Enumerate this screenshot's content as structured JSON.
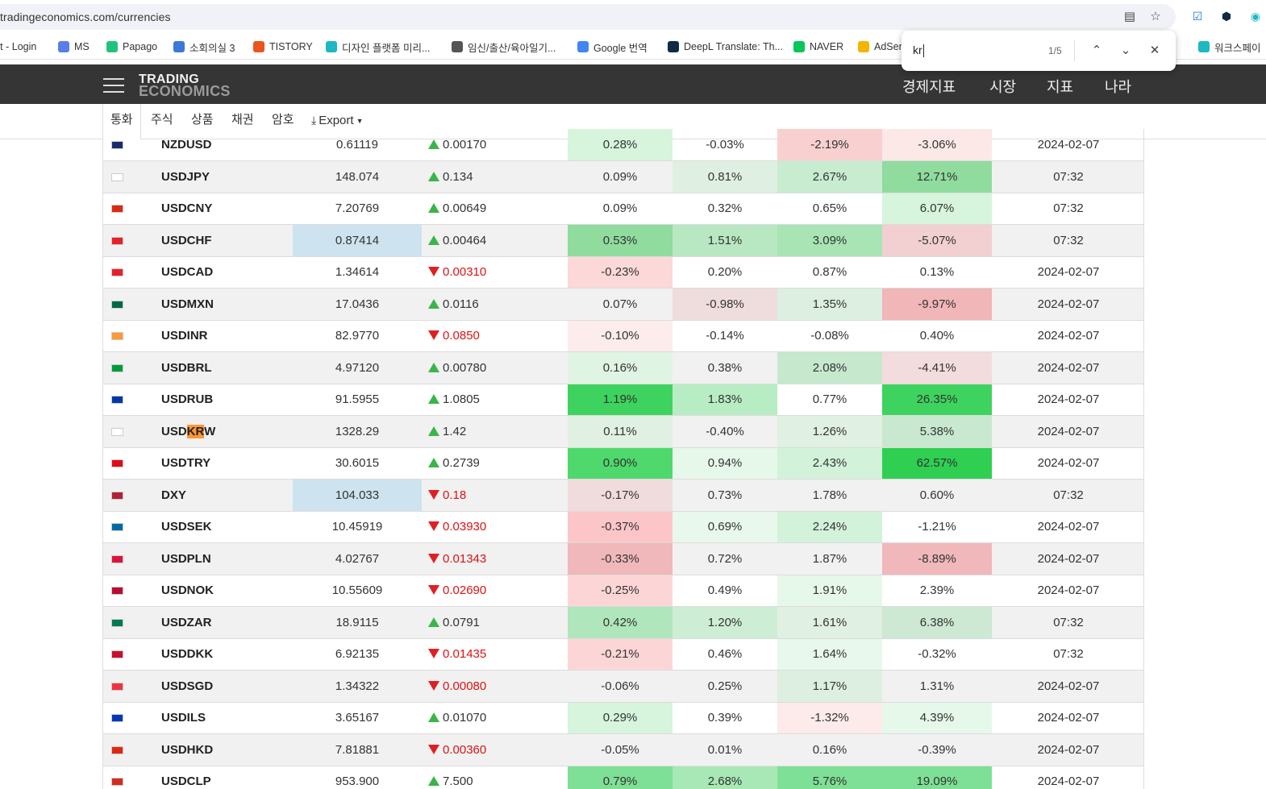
{
  "browser": {
    "url": "tradingeconomics.com/currencies",
    "bookmarks": [
      {
        "label": "rt - Login",
        "color": "#888888"
      },
      {
        "label": "MS",
        "color": "#5b7de8"
      },
      {
        "label": "Papago",
        "color": "#1fc47a"
      },
      {
        "label": "소회의실 3",
        "color": "#3c78d8"
      },
      {
        "label": "TISTORY",
        "color": "#eb531f"
      },
      {
        "label": "디자인 플랫폼 미리...",
        "color": "#1cb8c4"
      },
      {
        "label": "임신/출산/육아일기...",
        "color": "#555555"
      },
      {
        "label": "Google 번역",
        "color": "#4285f4"
      },
      {
        "label": "DeepL Translate: Th...",
        "color": "#0f2b46"
      },
      {
        "label": "NAVER",
        "color": "#03c75a"
      },
      {
        "label": "AdSen",
        "color": "#f4b400"
      },
      {
        "label": "워크스페이",
        "color": "#1cb8c4"
      }
    ],
    "find": {
      "query": "kr",
      "count": "1/5"
    }
  },
  "header": {
    "logo_line1": "TRADING",
    "logo_line2": "ECONOMICS",
    "nav": [
      "경제지표",
      "시장",
      "지표",
      "나라"
    ]
  },
  "subnav": {
    "tabs": [
      "통화",
      "주식",
      "상품",
      "채권",
      "암호"
    ],
    "export": "Export"
  },
  "table": {
    "rows": [
      {
        "symbol": "NZDUSD",
        "price": "0.61119",
        "dir": "up",
        "change": "0.00170",
        "d": "0.28%",
        "w": "-0.03%",
        "m": "-2.19%",
        "y": "-3.06%",
        "date": "2024-02-07",
        "flag_color": "#1a2b6d",
        "price_hl": false,
        "bg": [
          "#d6f5dc",
          "",
          "#f8d0d0",
          "#fde8e8"
        ]
      },
      {
        "symbol": "USDJPY",
        "price": "148.074",
        "dir": "up",
        "change": "0.134",
        "d": "0.09%",
        "w": "0.81%",
        "m": "2.67%",
        "y": "12.71%",
        "date": "07:32",
        "flag_color": "#ffffff",
        "price_hl": false,
        "bg": [
          "",
          "#dff0e2",
          "#c8ecd0",
          "#8fdc9e"
        ]
      },
      {
        "symbol": "USDCNY",
        "price": "7.20769",
        "dir": "up",
        "change": "0.00649",
        "d": "0.09%",
        "w": "0.32%",
        "m": "0.65%",
        "y": "6.07%",
        "date": "07:32",
        "flag_color": "#de2910",
        "price_hl": false,
        "bg": [
          "",
          "",
          "",
          "#d6f5dc"
        ]
      },
      {
        "symbol": "USDCHF",
        "price": "0.87414",
        "dir": "up",
        "change": "0.00464",
        "d": "0.53%",
        "w": "1.51%",
        "m": "3.09%",
        "y": "-5.07%",
        "date": "07:32",
        "flag_color": "#e8202a",
        "price_hl": true,
        "bg": [
          "#8fdc9e",
          "#b8e8c2",
          "#a8e4b4",
          "#f2cfd0"
        ]
      },
      {
        "symbol": "USDCAD",
        "price": "1.34614",
        "dir": "down",
        "change": "0.00310",
        "d": "-0.23%",
        "w": "0.20%",
        "m": "0.87%",
        "y": "0.13%",
        "date": "2024-02-07",
        "flag_color": "#e8202a",
        "price_hl": false,
        "bg": [
          "#fcd8d8",
          "",
          "",
          ""
        ]
      },
      {
        "symbol": "USDMXN",
        "price": "17.0436",
        "dir": "up",
        "change": "0.0116",
        "d": "0.07%",
        "w": "-0.98%",
        "m": "1.35%",
        "y": "-9.97%",
        "date": "2024-02-07",
        "flag_color": "#006847",
        "price_hl": false,
        "bg": [
          "",
          "#efdcdd",
          "#dcefe0",
          "#f0b6b8"
        ]
      },
      {
        "symbol": "USDINR",
        "price": "82.9770",
        "dir": "down",
        "change": "0.0850",
        "d": "-0.10%",
        "w": "-0.14%",
        "m": "-0.08%",
        "y": "0.40%",
        "date": "2024-02-07",
        "flag_color": "#ff9933",
        "price_hl": false,
        "bg": [
          "#fdecec",
          "",
          "",
          ""
        ]
      },
      {
        "symbol": "USDBRL",
        "price": "4.97120",
        "dir": "up",
        "change": "0.00780",
        "d": "0.16%",
        "w": "0.38%",
        "m": "2.08%",
        "y": "-4.41%",
        "date": "2024-02-07",
        "flag_color": "#009c3b",
        "price_hl": false,
        "bg": [
          "#e0f4e4",
          "",
          "#c6e8cd",
          "#f3dcdd"
        ]
      },
      {
        "symbol": "USDRUB",
        "price": "91.5955",
        "dir": "up",
        "change": "1.0805",
        "d": "1.19%",
        "w": "1.83%",
        "m": "0.77%",
        "y": "26.35%",
        "date": "2024-02-07",
        "flag_color": "#0039a6",
        "price_hl": false,
        "bg": [
          "#3ed35e",
          "#b8edc4",
          "",
          "#3ed35e"
        ]
      },
      {
        "symbol": "USDKRW",
        "price": "1328.29",
        "dir": "up",
        "change": "1.42",
        "d": "0.11%",
        "w": "-0.40%",
        "m": "1.26%",
        "y": "5.38%",
        "date": "2024-02-07",
        "flag_color": "#ffffff",
        "price_hl": false,
        "bg": [
          "#e0f0e3",
          "",
          "#e0f0e3",
          "#c8e8cf"
        ]
      },
      {
        "symbol": "USDTRY",
        "price": "30.6015",
        "dir": "up",
        "change": "0.2739",
        "d": "0.90%",
        "w": "0.94%",
        "m": "2.43%",
        "y": "62.57%",
        "date": "2024-02-07",
        "flag_color": "#e30a17",
        "price_hl": false,
        "bg": [
          "#4fd86c",
          "#e6f8ea",
          "#d2f2d9",
          "#2fcf52"
        ]
      },
      {
        "symbol": "DXY",
        "price": "104.033",
        "dir": "down",
        "change": "0.18",
        "d": "-0.17%",
        "w": "0.73%",
        "m": "1.78%",
        "y": "0.60%",
        "date": "07:32",
        "flag_color": "#b22234",
        "price_hl": true,
        "bg": [
          "#f1dcdd",
          "",
          "",
          ""
        ]
      },
      {
        "symbol": "USDSEK",
        "price": "10.45919",
        "dir": "down",
        "change": "0.03930",
        "d": "-0.37%",
        "w": "0.69%",
        "m": "2.24%",
        "y": "-1.21%",
        "date": "2024-02-07",
        "flag_color": "#006aa7",
        "price_hl": false,
        "bg": [
          "#fcc6c8",
          "#e8f8ec",
          "#d2f2d9",
          ""
        ]
      },
      {
        "symbol": "USDPLN",
        "price": "4.02767",
        "dir": "down",
        "change": "0.01343",
        "d": "-0.33%",
        "w": "0.72%",
        "m": "1.87%",
        "y": "-8.89%",
        "date": "2024-02-07",
        "flag_color": "#dc143c",
        "price_hl": false,
        "bg": [
          "#f0b8ba",
          "",
          "",
          "#f0b8ba"
        ]
      },
      {
        "symbol": "USDNOK",
        "price": "10.55609",
        "dir": "down",
        "change": "0.02690",
        "d": "-0.25%",
        "w": "0.49%",
        "m": "1.91%",
        "y": "2.39%",
        "date": "2024-02-07",
        "flag_color": "#ba0c2f",
        "price_hl": false,
        "bg": [
          "#fcd6d6",
          "",
          "#e6f8ea",
          ""
        ]
      },
      {
        "symbol": "USDZAR",
        "price": "18.9115",
        "dir": "up",
        "change": "0.0791",
        "d": "0.42%",
        "w": "1.20%",
        "m": "1.61%",
        "y": "6.38%",
        "date": "07:32",
        "flag_color": "#007a4d",
        "price_hl": false,
        "bg": [
          "#b0e6bc",
          "#cdeed4",
          "#e0f0e3",
          "#cde8d3"
        ]
      },
      {
        "symbol": "USDDKK",
        "price": "6.92135",
        "dir": "down",
        "change": "0.01435",
        "d": "-0.21%",
        "w": "0.46%",
        "m": "1.64%",
        "y": "-0.32%",
        "date": "07:32",
        "flag_color": "#c8102e",
        "price_hl": false,
        "bg": [
          "#fcd6d6",
          "",
          "#e8f8ec",
          ""
        ]
      },
      {
        "symbol": "USDSGD",
        "price": "1.34322",
        "dir": "down",
        "change": "0.00080",
        "d": "-0.06%",
        "w": "0.25%",
        "m": "1.17%",
        "y": "1.31%",
        "date": "2024-02-07",
        "flag_color": "#ef3340",
        "price_hl": false,
        "bg": [
          "",
          "",
          "#dcefe0",
          ""
        ]
      },
      {
        "symbol": "USDILS",
        "price": "3.65167",
        "dir": "up",
        "change": "0.01070",
        "d": "0.29%",
        "w": "0.39%",
        "m": "-1.32%",
        "y": "4.39%",
        "date": "2024-02-07",
        "flag_color": "#0038b8",
        "price_hl": false,
        "bg": [
          "#d6f5dc",
          "",
          "#fdeaea",
          "#e6f8ea"
        ]
      },
      {
        "symbol": "USDHKD",
        "price": "7.81881",
        "dir": "down",
        "change": "0.00360",
        "d": "-0.05%",
        "w": "0.01%",
        "m": "0.16%",
        "y": "-0.39%",
        "date": "2024-02-07",
        "flag_color": "#de2910",
        "price_hl": false,
        "bg": [
          "",
          "",
          "",
          ""
        ]
      },
      {
        "symbol": "USDCLP",
        "price": "953.900",
        "dir": "up",
        "change": "7.500",
        "d": "0.79%",
        "w": "2.68%",
        "m": "5.76%",
        "y": "19.09%",
        "date": "2024-02-07",
        "flag_color": "#d52b1e",
        "price_hl": false,
        "bg": [
          "#7ee096",
          "#a8e8b6",
          "#7ee096",
          "#7ee096"
        ]
      }
    ]
  }
}
